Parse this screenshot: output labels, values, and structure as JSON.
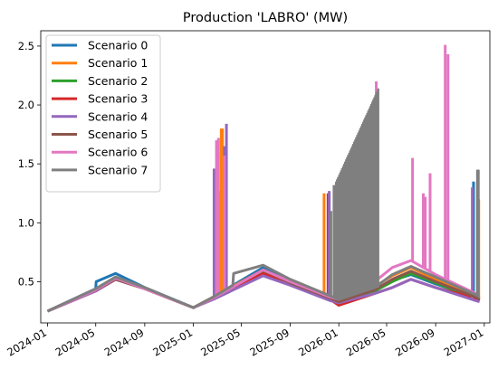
{
  "chart_data": {
    "type": "line",
    "title": "Production 'LABRO' (MW)",
    "xlabel": "",
    "ylabel": "",
    "xlim": [
      "2023-12-15",
      "2027-01-15"
    ],
    "ylim": [
      0.15,
      2.63
    ],
    "x_ticks": [
      "2024-01",
      "2024-05",
      "2024-09",
      "2025-01",
      "2025-05",
      "2025-09",
      "2026-01",
      "2026-05",
      "2026-09",
      "2027-01"
    ],
    "y_ticks": [
      0.5,
      1.0,
      1.5,
      2.0,
      2.5
    ],
    "y_tick_labels": [
      "0.5",
      "1.0",
      "1.5",
      "2.0",
      "2.5"
    ],
    "grid": false,
    "legend_position": "upper-left",
    "series": [
      {
        "name": "Scenario 0",
        "color": "#1f77b4",
        "points": [
          [
            "2024-01-01",
            0.25
          ],
          [
            "2024-05-01",
            0.44
          ],
          [
            "2024-05-02",
            0.5
          ],
          [
            "2024-06-20",
            0.57
          ],
          [
            "2024-09-01",
            0.45
          ],
          [
            "2025-01-01",
            0.28
          ],
          [
            "2025-02-20",
            0.37
          ],
          [
            "2025-06-25",
            0.62
          ],
          [
            "2025-09-01",
            0.5
          ],
          [
            "2025-12-10",
            0.37
          ],
          [
            "2026-01-01",
            0.34
          ],
          [
            "2026-04-01",
            0.43
          ],
          [
            "2026-05-15",
            0.51
          ],
          [
            "2026-07-01",
            0.56
          ],
          [
            "2026-09-01",
            0.48
          ],
          [
            "2026-12-10",
            0.37
          ],
          [
            "2026-12-20",
            0.35
          ]
        ],
        "spikes": [
          [
            "2026-12-05",
            1.35
          ],
          [
            "2026-12-15",
            1.35
          ]
        ]
      },
      {
        "name": "Scenario 1",
        "color": "#ff7f0e",
        "points": [
          [
            "2024-01-01",
            0.25
          ],
          [
            "2024-05-01",
            0.43
          ],
          [
            "2024-06-20",
            0.53
          ],
          [
            "2024-09-01",
            0.44
          ],
          [
            "2025-01-01",
            0.28
          ],
          [
            "2025-02-20",
            0.37
          ],
          [
            "2025-06-25",
            0.6
          ],
          [
            "2025-09-01",
            0.5
          ],
          [
            "2025-12-10",
            0.36
          ],
          [
            "2026-01-01",
            0.34
          ],
          [
            "2026-04-01",
            0.46
          ],
          [
            "2026-05-15",
            0.55
          ],
          [
            "2026-07-01",
            0.62
          ],
          [
            "2026-09-01",
            0.52
          ],
          [
            "2026-12-10",
            0.38
          ],
          [
            "2026-12-20",
            0.35
          ]
        ],
        "spikes": [
          [
            "2025-03-12",
            1.8
          ],
          [
            "2025-03-15",
            1.8
          ],
          [
            "2025-03-10",
            1.27
          ],
          [
            "2025-11-25",
            1.25
          ],
          [
            "2026-12-18",
            1.2
          ]
        ]
      },
      {
        "name": "Scenario 2",
        "color": "#2ca02c",
        "points": [
          [
            "2024-01-01",
            0.25
          ],
          [
            "2024-05-01",
            0.43
          ],
          [
            "2024-06-20",
            0.52
          ],
          [
            "2024-09-01",
            0.44
          ],
          [
            "2025-01-01",
            0.28
          ],
          [
            "2025-02-20",
            0.36
          ],
          [
            "2025-06-25",
            0.58
          ],
          [
            "2025-09-01",
            0.48
          ],
          [
            "2025-12-10",
            0.35
          ],
          [
            "2026-01-01",
            0.33
          ],
          [
            "2026-04-01",
            0.42
          ],
          [
            "2026-05-15",
            0.5
          ],
          [
            "2026-07-01",
            0.57
          ],
          [
            "2026-09-01",
            0.49
          ],
          [
            "2026-12-10",
            0.36
          ],
          [
            "2026-12-20",
            0.34
          ]
        ],
        "spikes": []
      },
      {
        "name": "Scenario 3",
        "color": "#d62728",
        "points": [
          [
            "2024-01-01",
            0.25
          ],
          [
            "2024-05-01",
            0.42
          ],
          [
            "2024-06-20",
            0.52
          ],
          [
            "2024-09-01",
            0.44
          ],
          [
            "2025-01-01",
            0.28
          ],
          [
            "2025-02-20",
            0.36
          ],
          [
            "2025-06-25",
            0.57
          ],
          [
            "2025-09-01",
            0.48
          ],
          [
            "2025-12-10",
            0.35
          ],
          [
            "2026-01-01",
            0.3
          ],
          [
            "2026-04-01",
            0.4
          ],
          [
            "2026-05-15",
            0.45
          ],
          [
            "2026-07-01",
            0.52
          ],
          [
            "2026-09-01",
            0.45
          ],
          [
            "2026-12-10",
            0.36
          ],
          [
            "2026-12-20",
            0.34
          ]
        ],
        "spikes": [
          [
            "2025-12-05",
            1.25
          ]
        ]
      },
      {
        "name": "Scenario 4",
        "color": "#9467bd",
        "points": [
          [
            "2024-01-01",
            0.25
          ],
          [
            "2024-05-01",
            0.42
          ],
          [
            "2024-06-20",
            0.52
          ],
          [
            "2024-09-01",
            0.44
          ],
          [
            "2025-01-01",
            0.28
          ],
          [
            "2025-02-20",
            0.35
          ],
          [
            "2025-06-25",
            0.55
          ],
          [
            "2025-09-01",
            0.47
          ],
          [
            "2025-12-10",
            0.34
          ],
          [
            "2026-01-01",
            0.32
          ],
          [
            "2026-04-01",
            0.4
          ],
          [
            "2026-05-15",
            0.45
          ],
          [
            "2026-07-01",
            0.52
          ],
          [
            "2026-09-01",
            0.45
          ],
          [
            "2026-12-10",
            0.34
          ],
          [
            "2026-12-20",
            0.33
          ]
        ],
        "spikes": [
          [
            "2025-02-22",
            1.46
          ],
          [
            "2025-03-20",
            1.65
          ],
          [
            "2025-03-25",
            1.84
          ],
          [
            "2025-12-08",
            1.27
          ],
          [
            "2026-12-02",
            1.3
          ]
        ]
      },
      {
        "name": "Scenario 5",
        "color": "#8c564b",
        "points": [
          [
            "2024-01-01",
            0.25
          ],
          [
            "2024-05-01",
            0.43
          ],
          [
            "2024-06-20",
            0.52
          ],
          [
            "2024-09-01",
            0.44
          ],
          [
            "2025-01-01",
            0.28
          ],
          [
            "2025-02-20",
            0.36
          ],
          [
            "2025-06-25",
            0.6
          ],
          [
            "2025-09-01",
            0.49
          ],
          [
            "2025-12-10",
            0.36
          ],
          [
            "2026-01-01",
            0.33
          ],
          [
            "2026-04-01",
            0.43
          ],
          [
            "2026-05-15",
            0.52
          ],
          [
            "2026-07-01",
            0.59
          ],
          [
            "2026-09-01",
            0.5
          ],
          [
            "2026-12-10",
            0.37
          ],
          [
            "2026-12-20",
            0.35
          ]
        ],
        "spikes": []
      },
      {
        "name": "Scenario 6",
        "color": "#e377c2",
        "points": [
          [
            "2024-01-01",
            0.25
          ],
          [
            "2024-05-01",
            0.43
          ],
          [
            "2024-06-20",
            0.53
          ],
          [
            "2024-09-01",
            0.44
          ],
          [
            "2025-01-01",
            0.28
          ],
          [
            "2025-02-20",
            0.36
          ],
          [
            "2025-06-25",
            0.6
          ],
          [
            "2025-09-01",
            0.5
          ],
          [
            "2025-12-10",
            0.37
          ],
          [
            "2026-01-01",
            0.35
          ],
          [
            "2026-04-01",
            0.5
          ],
          [
            "2026-05-15",
            0.62
          ],
          [
            "2026-07-01",
            0.68
          ],
          [
            "2026-09-01",
            0.56
          ],
          [
            "2026-12-10",
            0.4
          ],
          [
            "2026-12-20",
            0.37
          ]
        ],
        "spikes": [
          [
            "2025-02-28",
            1.7
          ],
          [
            "2025-03-05",
            1.72
          ],
          [
            "2025-03-20",
            1.57
          ],
          [
            "2026-04-05",
            2.2
          ],
          [
            "2026-07-05",
            1.55
          ],
          [
            "2026-08-01",
            1.25
          ],
          [
            "2026-08-06",
            1.22
          ],
          [
            "2026-08-18",
            1.42
          ],
          [
            "2026-09-25",
            2.51
          ],
          [
            "2026-10-02",
            2.43
          ]
        ]
      },
      {
        "name": "Scenario 7",
        "color": "#7f7f7f",
        "points": [
          [
            "2024-01-01",
            0.25
          ],
          [
            "2024-05-01",
            0.44
          ],
          [
            "2024-06-20",
            0.54
          ],
          [
            "2024-09-01",
            0.45
          ],
          [
            "2025-01-01",
            0.28
          ],
          [
            "2025-02-20",
            0.37
          ],
          [
            "2025-04-10",
            0.47
          ],
          [
            "2025-04-12",
            0.57
          ],
          [
            "2025-06-25",
            0.64
          ],
          [
            "2025-09-01",
            0.52
          ],
          [
            "2025-12-10",
            0.38
          ],
          [
            "2026-01-01",
            0.35
          ],
          [
            "2026-04-01",
            0.45
          ],
          [
            "2026-05-15",
            0.56
          ],
          [
            "2026-07-01",
            0.63
          ],
          [
            "2026-09-01",
            0.54
          ],
          [
            "2026-12-10",
            0.39
          ],
          [
            "2026-12-20",
            0.37
          ]
        ],
        "spikes": [
          [
            "2025-12-12",
            1.1
          ],
          [
            "2025-12-20",
            1.32
          ],
          [
            "2026-12-15",
            1.45
          ],
          [
            "2026-12-17",
            1.45
          ]
        ],
        "ramp": {
          "start": "2025-12-25",
          "end": "2026-04-10",
          "baseStart": 0.35,
          "baseEnd": 0.45,
          "peakStart": 1.35,
          "peakEnd": 2.14,
          "steps": 42
        }
      }
    ]
  }
}
